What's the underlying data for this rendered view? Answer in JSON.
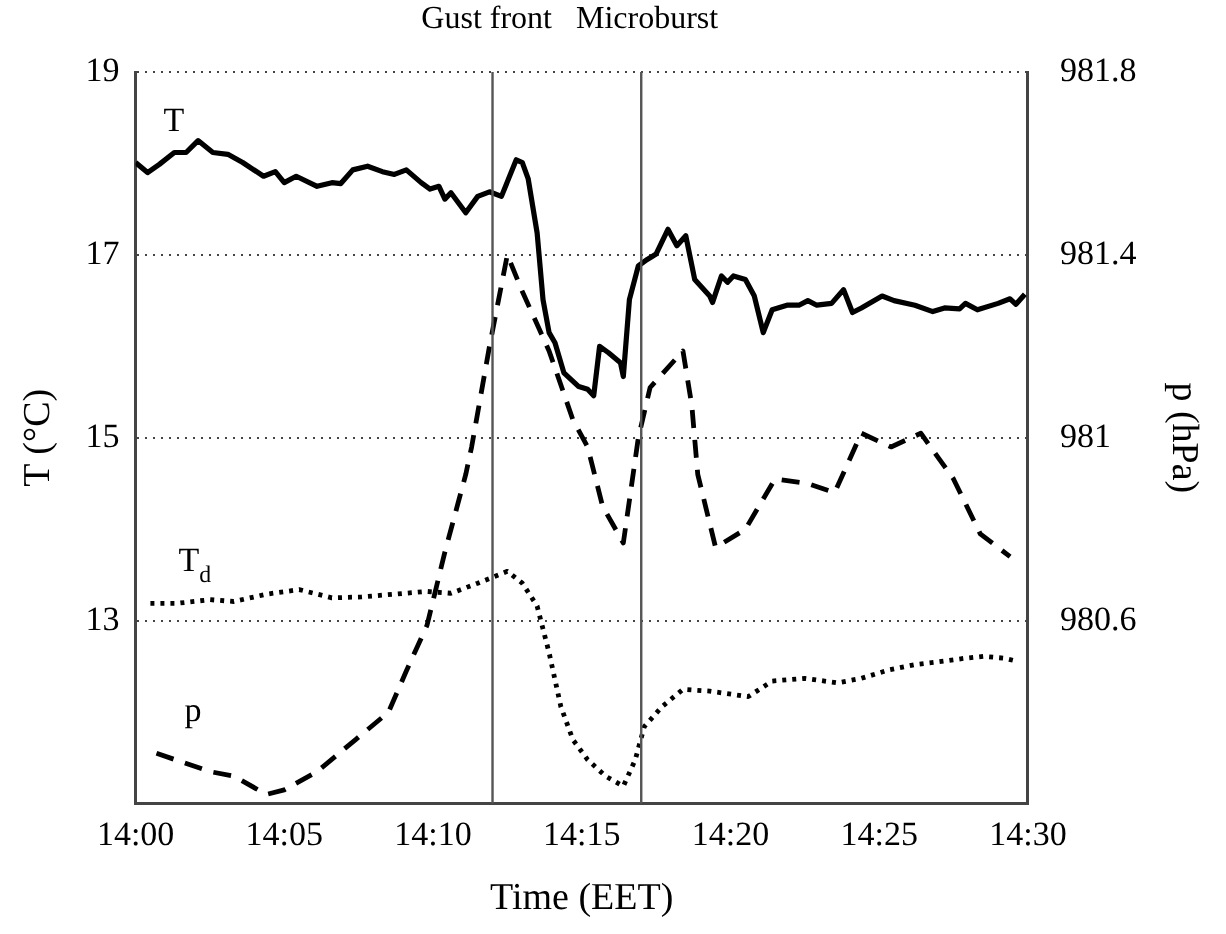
{
  "chart_data": {
    "type": "line",
    "xlabel": "Time (EET)",
    "ylabel": "T (°C)",
    "y2label": "p (hPa)",
    "xlim": [
      14,
      14.5
    ],
    "xticks": [
      {
        "value": 14,
        "label": "14:00"
      },
      {
        "value": 14.08333,
        "label": "14:05"
      },
      {
        "value": 14.16667,
        "label": "14:10"
      },
      {
        "value": 14.25,
        "label": "14:15"
      },
      {
        "value": 14.33333,
        "label": "14:20"
      },
      {
        "value": 14.41667,
        "label": "14:25"
      },
      {
        "value": 14.5,
        "label": "14:30"
      }
    ],
    "ylim": [
      11,
      19
    ],
    "yticks": [
      13,
      15,
      17,
      19
    ],
    "y2lim": [
      980.2,
      981.8
    ],
    "y2ticks": [
      980.6,
      981,
      981.4,
      981.8
    ],
    "grid": "y",
    "legend": false,
    "marker": "none",
    "ref_lines": [
      {
        "axis": "x",
        "value": 14.2,
        "label": "Gust front",
        "color": "#555555"
      },
      {
        "axis": "x",
        "value": 14.28333,
        "label": "Microburst",
        "color": "#555555"
      }
    ],
    "series": [
      {
        "name": "T",
        "color": "#000000",
        "line_style": "solid",
        "x": [
          14.0,
          14.0067,
          14.0133,
          14.0217,
          14.0283,
          14.035,
          14.0433,
          14.0517,
          14.06,
          14.0717,
          14.0783,
          14.0833,
          14.09,
          14.1017,
          14.11,
          14.115,
          14.1217,
          14.13,
          14.1383,
          14.145,
          14.1517,
          14.16,
          14.165,
          14.17,
          14.1733,
          14.1767,
          14.185,
          14.1917,
          14.1983,
          14.205,
          14.2133,
          14.2167,
          14.22,
          14.225,
          14.2283,
          14.2317,
          14.235,
          14.24,
          14.2483,
          14.2533,
          14.2567,
          14.26,
          14.265,
          14.2717,
          14.2733,
          14.2767,
          14.2817,
          14.2867,
          14.2917,
          14.2983,
          14.3033,
          14.3083,
          14.3133,
          14.3217,
          14.3233,
          14.3283,
          14.3317,
          14.335,
          14.3417,
          14.3467,
          14.3517,
          14.3567,
          14.365,
          14.3717,
          14.3767,
          14.3817,
          14.39,
          14.3967,
          14.4017,
          14.4067,
          14.4183,
          14.425,
          14.4367,
          14.4467,
          14.4533,
          14.4617,
          14.465,
          14.4717,
          14.4833,
          14.49,
          14.4933,
          14.4983
        ],
        "values": [
          18.01,
          17.9,
          17.99,
          18.12,
          18.12,
          18.25,
          18.12,
          18.1,
          18.01,
          17.86,
          17.91,
          17.79,
          17.86,
          17.75,
          17.79,
          17.78,
          17.93,
          17.97,
          17.91,
          17.88,
          17.93,
          17.79,
          17.72,
          17.75,
          17.61,
          17.68,
          17.46,
          17.64,
          17.69,
          17.64,
          18.04,
          18.01,
          17.83,
          17.24,
          16.51,
          16.15,
          16.04,
          15.71,
          15.56,
          15.53,
          15.46,
          16.0,
          15.93,
          15.82,
          15.67,
          16.51,
          16.88,
          16.95,
          17.01,
          17.28,
          17.1,
          17.21,
          16.73,
          16.55,
          16.48,
          16.77,
          16.7,
          16.77,
          16.73,
          16.55,
          16.15,
          16.4,
          16.45,
          16.45,
          16.5,
          16.45,
          16.47,
          16.62,
          16.37,
          16.42,
          16.55,
          16.5,
          16.45,
          16.38,
          16.42,
          16.41,
          16.47,
          16.4,
          16.47,
          16.52,
          16.46,
          16.57
        ]
      },
      {
        "name": "T$_{d}$",
        "color": "#000000",
        "line_style": "dotted",
        "x": [
          14.0083,
          14.0233,
          14.0417,
          14.055,
          14.0733,
          14.0917,
          14.11,
          14.1267,
          14.145,
          14.1633,
          14.1767,
          14.1917,
          14.2083,
          14.2167,
          14.225,
          14.2317,
          14.2383,
          14.245,
          14.2533,
          14.2633,
          14.2733,
          14.28,
          14.285,
          14.295,
          14.3067,
          14.3217,
          14.3433,
          14.3567,
          14.375,
          14.3933,
          14.4067,
          14.4217,
          14.4367,
          14.45,
          14.465,
          14.475,
          14.4867,
          14.4933
        ],
        "values": [
          13.19,
          13.19,
          13.23,
          13.21,
          13.29,
          13.34,
          13.25,
          13.26,
          13.29,
          13.32,
          13.3,
          13.41,
          13.54,
          13.41,
          13.16,
          12.65,
          12.06,
          11.7,
          11.48,
          11.3,
          11.19,
          11.48,
          11.84,
          12.06,
          12.25,
          12.23,
          12.17,
          12.34,
          12.37,
          12.32,
          12.37,
          12.46,
          12.52,
          12.55,
          12.59,
          12.61,
          12.59,
          12.56
        ]
      },
      {
        "name": "p",
        "color": "#000000",
        "line_style": "dashed",
        "axis": "y2",
        "x": [
          14.0117,
          14.0267,
          14.0417,
          14.055,
          14.0733,
          14.0833,
          14.1017,
          14.1233,
          14.1417,
          14.1517,
          14.1633,
          14.1733,
          14.185,
          14.1883,
          14.1983,
          14.2083,
          14.2167,
          14.2317,
          14.245,
          14.2533,
          14.2617,
          14.2733,
          14.2817,
          14.2883,
          14.3067,
          14.3117,
          14.315,
          14.325,
          14.3417,
          14.3583,
          14.3767,
          14.3917,
          14.4067,
          14.4233,
          14.44,
          14.4583,
          14.4733,
          14.49
        ],
        "values": [
          980.31,
          980.29,
          980.27,
          980.26,
          980.22,
          980.23,
          980.27,
          980.34,
          980.4,
          980.49,
          980.59,
          980.75,
          980.92,
          980.98,
          981.2,
          981.4,
          981.32,
          981.19,
          981.04,
          980.98,
          980.85,
          980.77,
          981.0,
          981.11,
          981.19,
          981.07,
          980.92,
          980.76,
          980.8,
          980.91,
          980.9,
          980.88,
          981.01,
          980.98,
          981.01,
          980.91,
          980.79,
          980.74
        ]
      }
    ]
  }
}
